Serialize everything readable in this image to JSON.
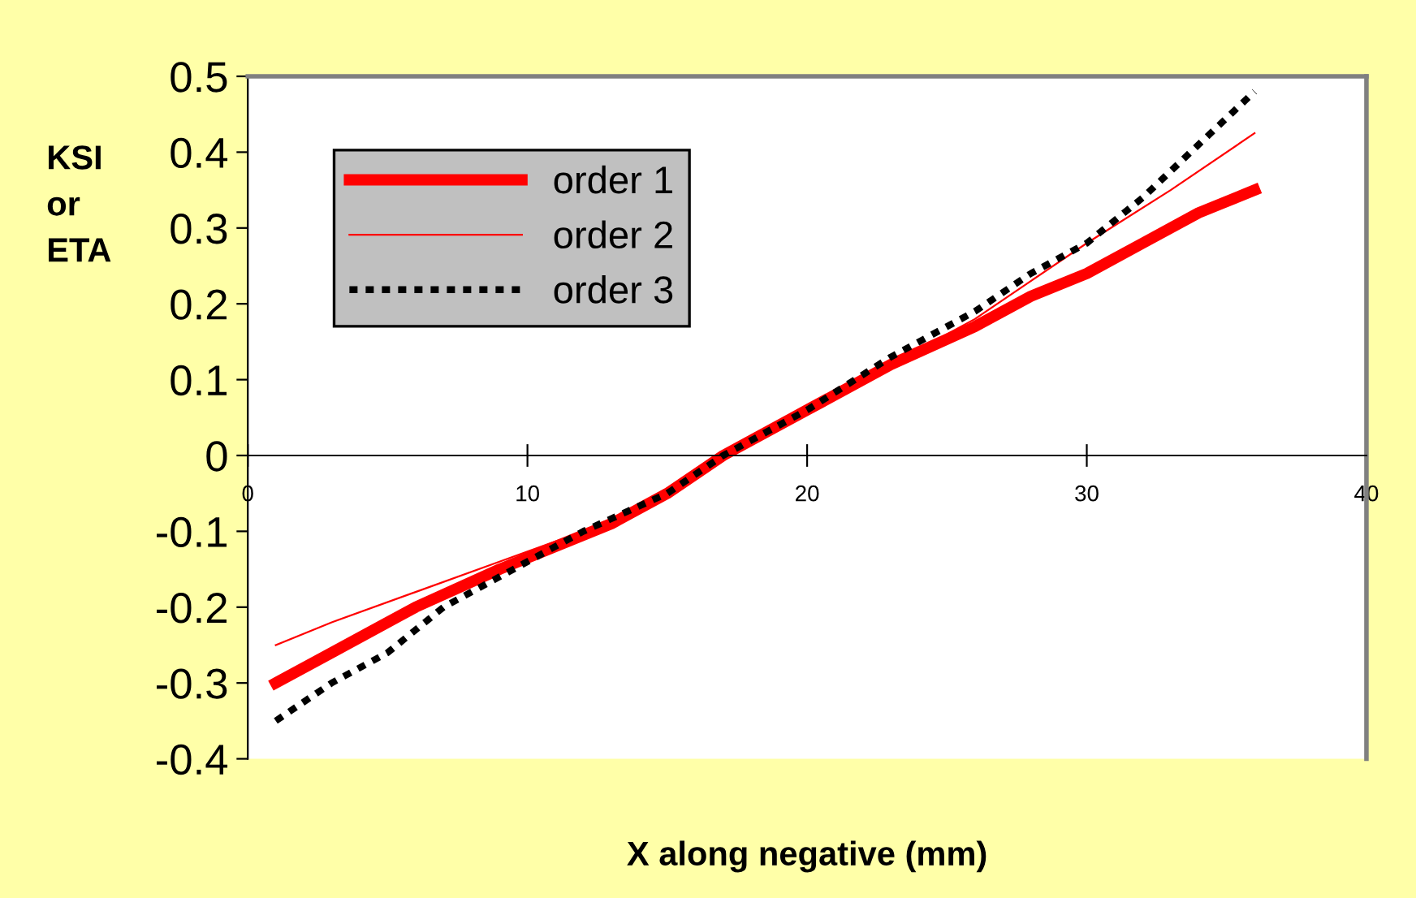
{
  "chart_data": {
    "type": "line",
    "xlabel": "X along negative (mm)",
    "ylabel": "KSI\nor\nETA",
    "xlim": [
      0,
      40
    ],
    "xticks": [
      0,
      10,
      20,
      30,
      40
    ],
    "ylim": [
      -0.4,
      0.5
    ],
    "yticks": [
      -0.4,
      -0.3,
      -0.2,
      -0.1,
      0,
      0.1,
      0.2,
      0.3,
      0.4,
      0.5
    ],
    "grid": false,
    "legend": "top left",
    "marker": "none",
    "series": [
      {
        "name": "order 1",
        "color": "#ff0000",
        "line_style": "solid",
        "x": [
          1,
          3,
          6,
          9,
          11,
          13,
          15,
          17,
          20,
          23,
          26,
          28,
          30,
          32,
          34,
          36
        ],
        "values": [
          -0.3,
          -0.26,
          -0.2,
          -0.15,
          -0.12,
          -0.09,
          -0.05,
          0.0,
          0.06,
          0.12,
          0.17,
          0.21,
          0.24,
          0.28,
          0.32,
          0.35
        ]
      },
      {
        "name": "order 2",
        "color": "#ff0000",
        "line_style": "solid",
        "x": [
          1,
          3,
          6,
          9,
          12,
          15,
          17,
          20,
          23,
          26,
          28,
          30,
          33,
          36
        ],
        "values": [
          -0.25,
          -0.22,
          -0.18,
          -0.14,
          -0.1,
          -0.05,
          0.0,
          0.06,
          0.12,
          0.18,
          0.23,
          0.28,
          0.35,
          0.425
        ]
      },
      {
        "name": "order 3",
        "color": "#000000",
        "line_style": "dotted",
        "x": [
          1,
          3,
          5,
          7,
          9,
          12,
          15,
          17,
          20,
          23,
          26,
          28,
          30,
          32,
          34,
          36
        ],
        "values": [
          -0.35,
          -0.3,
          -0.26,
          -0.2,
          -0.16,
          -0.1,
          -0.05,
          0.0,
          0.06,
          0.13,
          0.19,
          0.24,
          0.28,
          0.34,
          0.41,
          0.48
        ]
      }
    ]
  }
}
